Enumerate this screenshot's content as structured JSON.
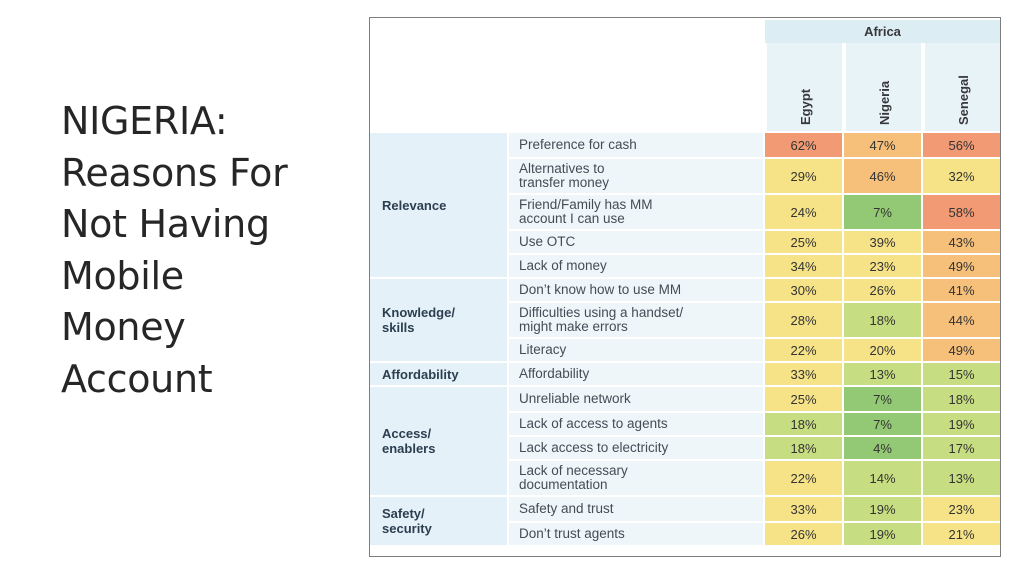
{
  "slide": {
    "title": "NIGERIA:\nReasons For\nNot Having\nMobile\nMoney\nAccount"
  },
  "table": {
    "region": "Africa",
    "countries": [
      "Egypt",
      "Nigeria",
      "Senegal"
    ],
    "groups": [
      {
        "label": "Relevance",
        "rows": [
          0,
          4
        ]
      },
      {
        "label": "Knowledge/\nskills",
        "rows": [
          5,
          7
        ]
      },
      {
        "label": "Affordability",
        "rows": [
          8,
          8
        ]
      },
      {
        "label": "Access/\nenablers",
        "rows": [
          9,
          12
        ]
      },
      {
        "label": "Safety/\nsecurity",
        "rows": [
          13,
          14
        ]
      }
    ],
    "rows": [
      {
        "reason": "Preference for cash",
        "values": [
          "62%",
          "47%",
          "56%"
        ]
      },
      {
        "reason": "Alternatives to\ntransfer money",
        "values": [
          "29%",
          "46%",
          "32%"
        ]
      },
      {
        "reason": "Friend/Family has MM\naccount I can use",
        "values": [
          "24%",
          "7%",
          "58%"
        ]
      },
      {
        "reason": "Use OTC",
        "values": [
          "25%",
          "39%",
          "43%"
        ]
      },
      {
        "reason": "Lack of money",
        "values": [
          "34%",
          "23%",
          "49%"
        ]
      },
      {
        "reason": "Don’t know how to use MM",
        "values": [
          "30%",
          "26%",
          "41%"
        ]
      },
      {
        "reason": "Difficulties using a handset/\nmight make errors",
        "values": [
          "28%",
          "18%",
          "44%"
        ]
      },
      {
        "reason": "Literacy",
        "values": [
          "22%",
          "20%",
          "49%"
        ]
      },
      {
        "reason": "Affordability",
        "values": [
          "33%",
          "13%",
          "15%"
        ]
      },
      {
        "reason": "Unreliable network",
        "values": [
          "25%",
          "7%",
          "18%"
        ]
      },
      {
        "reason": "Lack of access to agents",
        "values": [
          "18%",
          "7%",
          "19%"
        ]
      },
      {
        "reason": "Lack access to electricity",
        "values": [
          "18%",
          "4%",
          "17%"
        ]
      },
      {
        "reason": "Lack of necessary\ndocumentation",
        "values": [
          "22%",
          "14%",
          "13%"
        ]
      },
      {
        "reason": "Safety and trust",
        "values": [
          "33%",
          "19%",
          "23%"
        ]
      },
      {
        "reason": "Don’t trust agents",
        "values": [
          "26%",
          "19%",
          "21%"
        ]
      }
    ],
    "heat_colors": {
      "red": "#f29a74",
      "orange": "#f7c07a",
      "yellow": "#f6e387",
      "lightgreen": "#c7dd82",
      "green": "#93c974"
    }
  }
}
